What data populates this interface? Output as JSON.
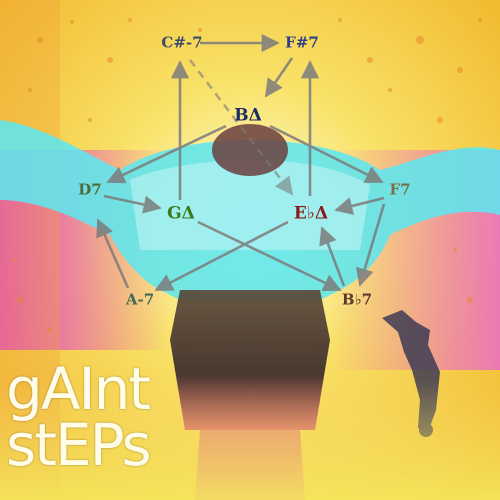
{
  "colors": {
    "background_yellow": "#f7d23a",
    "magenta": "#e03bd6",
    "cyan": "#5fe6ee",
    "arrow": "#7c7c7c",
    "title_text": "#fffce8"
  },
  "chords": {
    "c_sharp_m7": {
      "label": "C#-7",
      "color": "#3b4d6b"
    },
    "f_sharp_7": {
      "label": "F#7",
      "color": "#2e3f86"
    },
    "b_maj7": {
      "label": "BΔ",
      "color": "#1d2a63"
    },
    "d7": {
      "label": "D7",
      "color": "#4e6b3a"
    },
    "g_maj7": {
      "label": "GΔ",
      "color": "#3b7a1c"
    },
    "e_flat_maj7": {
      "label": "E♭Δ",
      "color": "#8a1a1a"
    },
    "f7": {
      "label": "F7",
      "color": "#7a6f44"
    },
    "a_m7": {
      "label": "A-7",
      "color": "#3e6a55"
    },
    "b_flat_7": {
      "label": "B♭7",
      "color": "#5a3a2e"
    }
  },
  "title": {
    "line1": "gAInt",
    "line2": "stEPs"
  }
}
